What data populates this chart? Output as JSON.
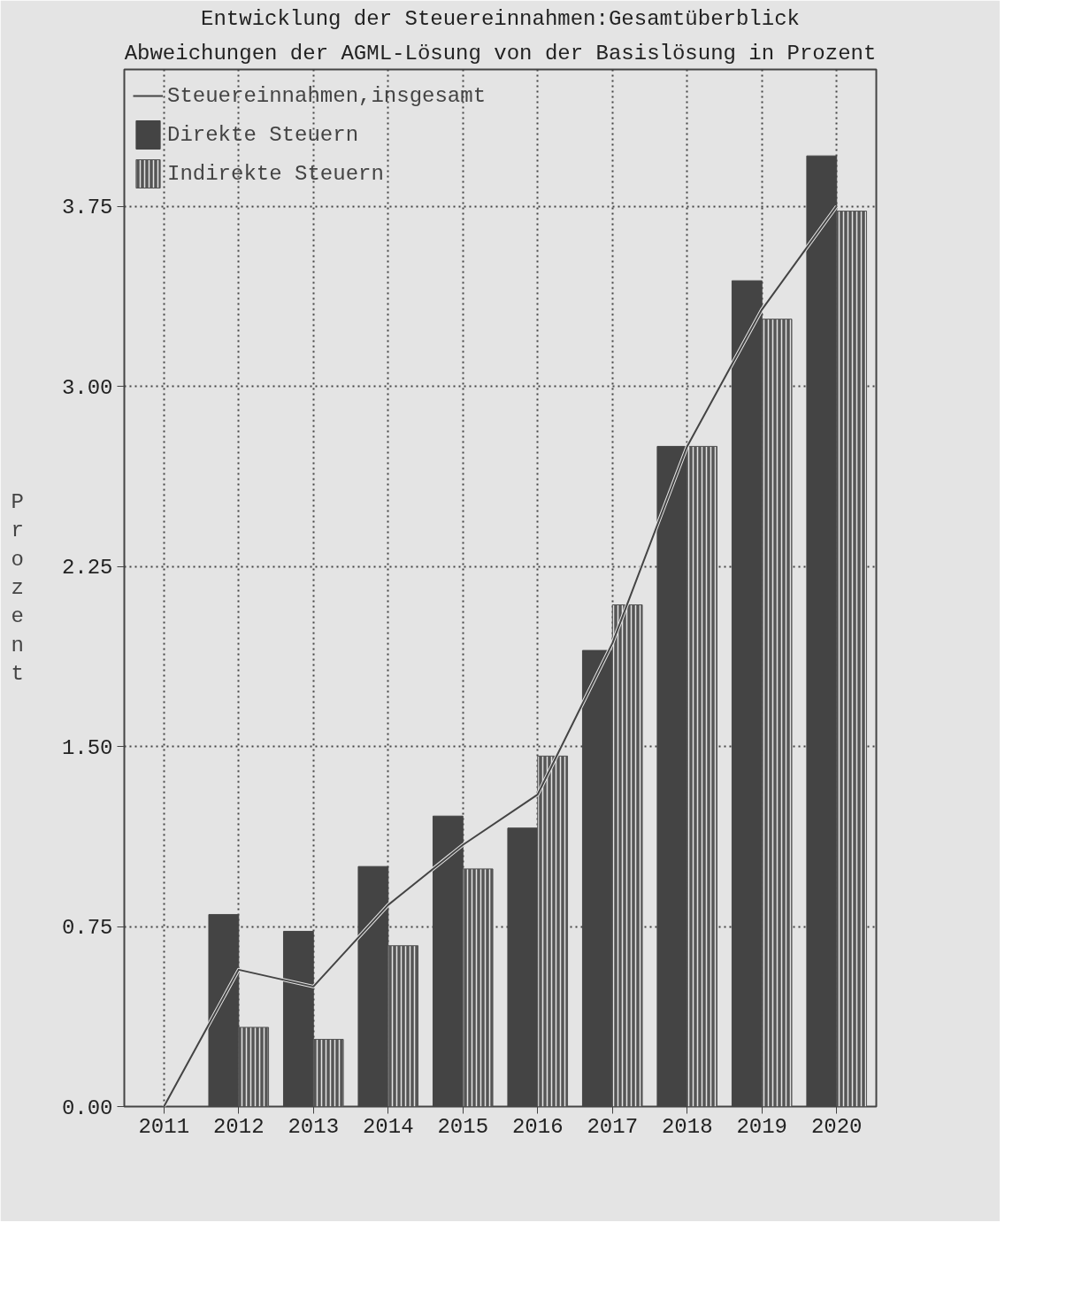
{
  "chart_data": {
    "type": "bar",
    "title": "Entwicklung der Steuereinnahmen:Gesamtüberblick",
    "subtitle": "Abweichungen der AGML-Lösung von der Basislösung in Prozent",
    "ylabel": "Prozent",
    "categories": [
      "2011",
      "2012",
      "2013",
      "2014",
      "2015",
      "2016",
      "2017",
      "2018",
      "2019",
      "2020"
    ],
    "series": [
      {
        "name": "Steuereinnahmen,insgesamt",
        "type": "line",
        "color": "#444444",
        "values": [
          0,
          0.57,
          0.5,
          0.84,
          1.09,
          1.3,
          1.93,
          2.75,
          3.32,
          3.75
        ]
      },
      {
        "name": "Direkte Steuern",
        "color": "#444444",
        "values": [
          null,
          0.8,
          0.73,
          1.0,
          1.21,
          1.16,
          1.9,
          2.75,
          3.44,
          3.96
        ]
      },
      {
        "name": "Indirekte Steuern",
        "color": "#555555",
        "values": [
          null,
          0.33,
          0.28,
          0.67,
          0.99,
          1.46,
          2.09,
          2.75,
          3.28,
          3.73
        ]
      }
    ],
    "ylim": [
      0,
      4.32
    ],
    "yticks": [
      {
        "value": 0,
        "label": "0.00"
      },
      {
        "value": 0.75,
        "label": "0.75"
      },
      {
        "value": 1.5,
        "label": "1.50"
      },
      {
        "value": 2.25,
        "label": "2.25"
      },
      {
        "value": 3,
        "label": "3.00"
      },
      {
        "value": 3.75,
        "label": "3.75"
      }
    ],
    "grid": true,
    "legend": "top left",
    "marker": "none",
    "line_style": "solid"
  }
}
